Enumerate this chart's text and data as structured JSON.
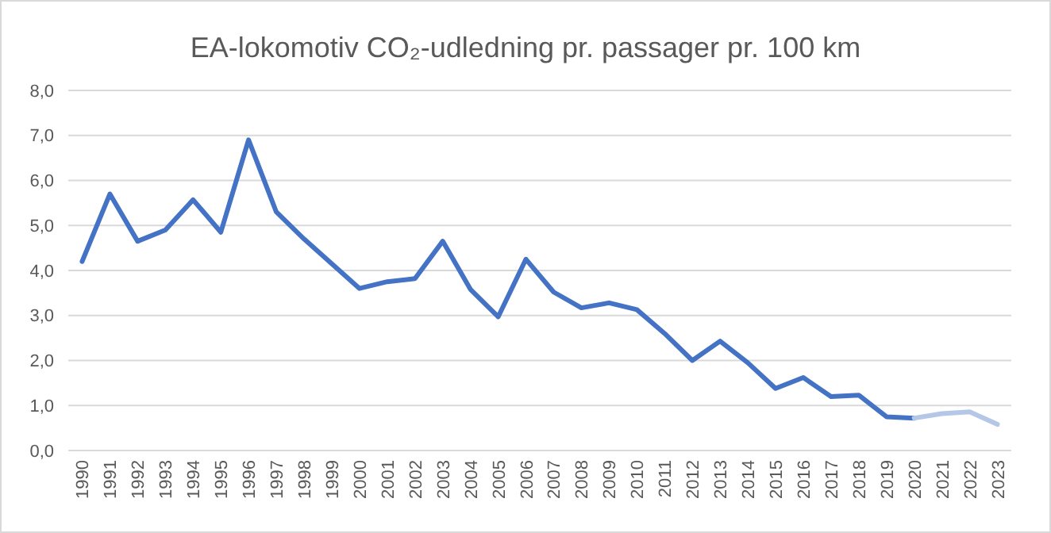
{
  "chart_data": {
    "type": "line",
    "title": "EA-lokomotiv CO₂-udledning pr. passager pr. 100 km",
    "categories": [
      "1990",
      "1991",
      "1992",
      "1993",
      "1994",
      "1995",
      "1996",
      "1997",
      "1998",
      "1999",
      "2000",
      "2001",
      "2002",
      "2003",
      "2004",
      "2005",
      "2006",
      "2007",
      "2008",
      "2009",
      "2010",
      "2011",
      "2012",
      "2013",
      "2014",
      "2015",
      "2016",
      "2017",
      "2018",
      "2019",
      "2020",
      "2021",
      "2022",
      "2023"
    ],
    "series": [
      {
        "color": "#4472c4",
        "values": [
          4.2,
          5.7,
          4.65,
          4.9,
          5.57,
          4.85,
          6.9,
          5.3,
          4.7,
          4.15,
          3.6,
          3.75,
          3.82,
          4.65,
          3.58,
          2.97,
          4.25,
          3.52,
          3.17,
          3.28,
          3.13,
          2.6,
          2.0,
          2.43,
          1.95,
          1.38,
          1.62,
          1.2,
          1.23,
          0.75,
          0.72,
          null,
          null,
          null
        ]
      },
      {
        "color": "#b4c7e7",
        "values": [
          null,
          null,
          null,
          null,
          null,
          null,
          null,
          null,
          null,
          null,
          null,
          null,
          null,
          null,
          null,
          null,
          null,
          null,
          null,
          null,
          null,
          null,
          null,
          null,
          null,
          null,
          null,
          null,
          null,
          null,
          0.72,
          0.82,
          0.86,
          0.58
        ]
      }
    ],
    "ylim": [
      0,
      8
    ],
    "yticks": [
      {
        "value": 0,
        "label": "0,0"
      },
      {
        "value": 1,
        "label": "1,0"
      },
      {
        "value": 2,
        "label": "2,0"
      },
      {
        "value": 3,
        "label": "3,0"
      },
      {
        "value": 4,
        "label": "4,0"
      },
      {
        "value": 5,
        "label": "5,0"
      },
      {
        "value": 6,
        "label": "6,0"
      },
      {
        "value": 7,
        "label": "7,0"
      },
      {
        "value": 8,
        "label": "8,0"
      }
    ],
    "grid": "y",
    "marker": "none",
    "line_style": "solid"
  }
}
